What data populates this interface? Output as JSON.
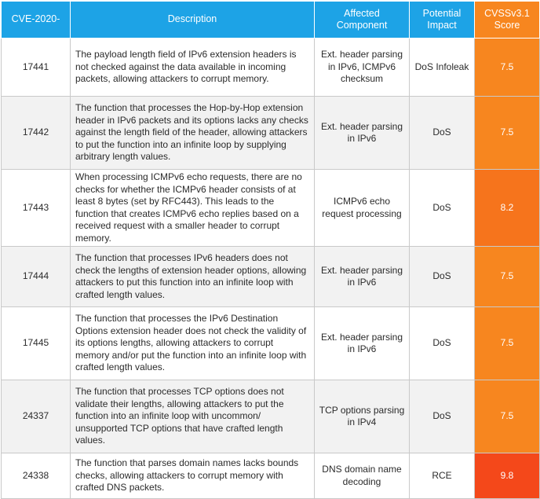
{
  "headers": {
    "cve": "CVE-2020-",
    "description": "Description",
    "component": "Affected Component",
    "impact": "Potential Impact",
    "score": "CVSSv3.1 Score"
  },
  "colors": {
    "header_bg": "#1da3e6",
    "score_75": "#f7861f",
    "score_82": "#f6741c",
    "score_98": "#f4481a"
  },
  "rows": [
    {
      "id": "17441",
      "description": "The payload length field of IPv6 extension headers is not checked against the data available in incoming packets, allowing attackers to corrupt memory.",
      "component": "Ext. header parsing in IPv6, ICMPv6 checksum",
      "impact": "DoS Infoleak",
      "score": "7.5",
      "color": "#f7861f"
    },
    {
      "id": "17442",
      "description": "The function that processes the Hop-by-Hop extension header in IPv6 packets and its options lacks any checks against the length field of the header, allowing attackers to put the function into an infinite loop by supplying arbitrary length values.",
      "component": "Ext. header parsing in IPv6",
      "impact": "DoS",
      "score": "7.5",
      "color": "#f7861f"
    },
    {
      "id": "17443",
      "description": "When processing ICMPv6 echo requests, there are no checks for whether the ICMPv6 header consists of at least 8 bytes (set by RFC443). This leads to the function that creates ICMPv6 echo replies based on a received request with a smaller header to corrupt memory.",
      "component": "ICMPv6 echo request processing",
      "impact": "DoS",
      "score": "8.2",
      "color": "#f6741c"
    },
    {
      "id": "17444",
      "description": "The function that processes IPv6 headers does not check the lengths of extension header options, allowing attackers to put this function into an infinite loop with crafted length values.",
      "component": "Ext. header parsing in IPv6",
      "impact": "DoS",
      "score": "7.5",
      "color": "#f7861f"
    },
    {
      "id": "17445",
      "description": "The function that processes the IPv6 Destination Options extension header does not check the validity of its options lengths, allowing attackers to corrupt memory and/or put the function into an infinite loop with crafted length values.",
      "component": "Ext. header parsing in IPv6",
      "impact": "DoS",
      "score": "7.5",
      "color": "#f7861f"
    },
    {
      "id": "24337",
      "description": "The function that processes TCP options does not validate their lengths, allowing attackers to put the function into an infinite loop with uncommon/ unsupported TCP options that have crafted length values.",
      "component": "TCP options parsing in IPv4",
      "impact": "DoS",
      "score": "7.5",
      "color": "#f7861f"
    },
    {
      "id": "24338",
      "description": "The function that parses domain names lacks bounds checks, allowing attackers to corrupt memory with crafted DNS packets.",
      "component": "DNS domain name decoding",
      "impact": "RCE",
      "score": "9.8",
      "color": "#f4481a"
    }
  ]
}
